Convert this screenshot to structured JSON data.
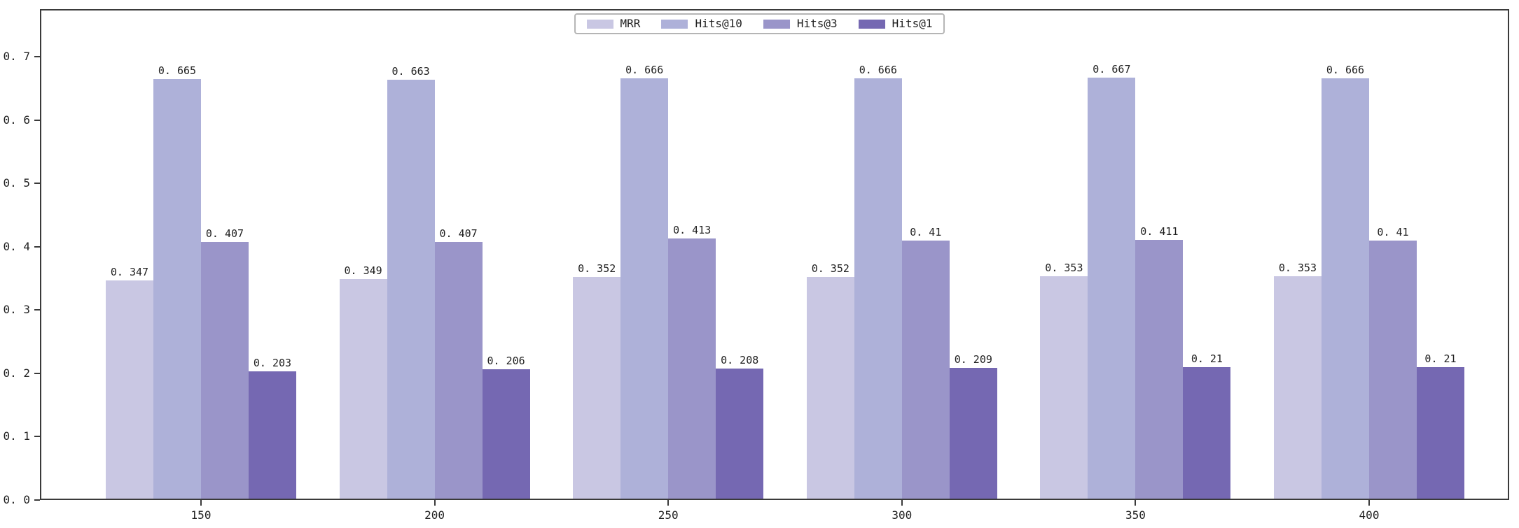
{
  "figure": {
    "background": "#ffffff",
    "spine_color": "#3a3a3a",
    "tick_text_color": "#1f1f1f",
    "legend_border_color": "#b5b5b5"
  },
  "chart_data": {
    "type": "bar",
    "title": "",
    "xlabel": "",
    "ylabel": "",
    "grid": false,
    "legend_position": "upper center",
    "categories": [
      "150",
      "200",
      "250",
      "300",
      "350",
      "400"
    ],
    "series": [
      {
        "name": "MRR",
        "color": "#c9c7e3",
        "values": [
          0.347,
          0.349,
          0.352,
          0.352,
          0.353,
          0.353
        ]
      },
      {
        "name": "Hits@10",
        "color": "#aeb1d9",
        "values": [
          0.665,
          0.663,
          0.666,
          0.666,
          0.667,
          0.666
        ]
      },
      {
        "name": "Hits@3",
        "color": "#9a95c9",
        "values": [
          0.407,
          0.407,
          0.413,
          0.41,
          0.411,
          0.41
        ]
      },
      {
        "name": "Hits@1",
        "color": "#7568b2",
        "values": [
          0.203,
          0.206,
          0.208,
          0.209,
          0.21,
          0.21
        ]
      }
    ],
    "yticks": [
      0.0,
      0.1,
      0.2,
      0.3,
      0.4,
      0.5,
      0.6,
      0.7
    ],
    "ylim": [
      0,
      0.775
    ],
    "bar_value_labels": true
  }
}
